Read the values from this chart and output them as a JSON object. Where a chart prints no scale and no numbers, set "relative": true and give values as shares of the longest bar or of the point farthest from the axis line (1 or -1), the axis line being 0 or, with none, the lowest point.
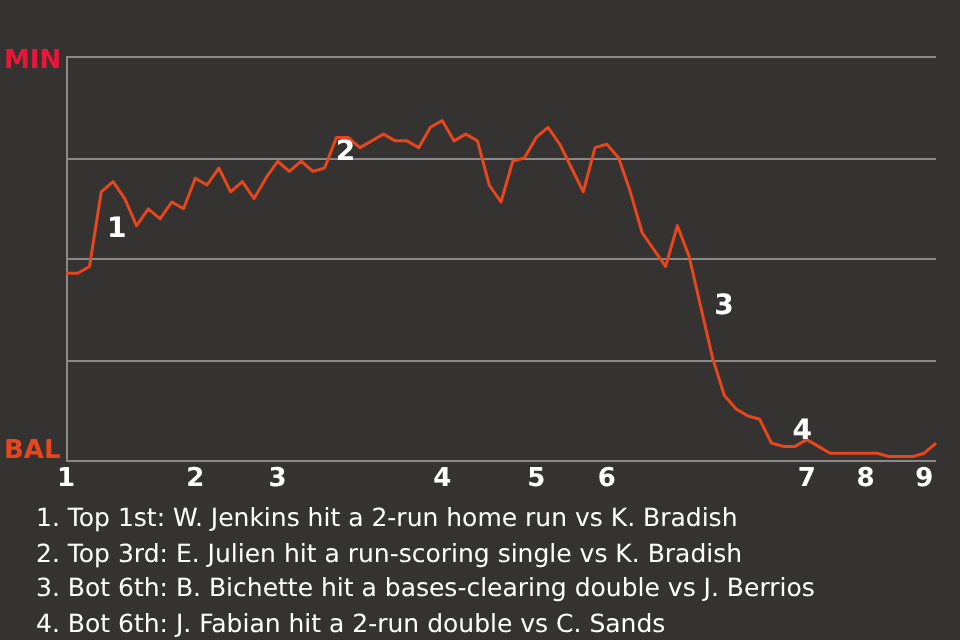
{
  "chart_data": {
    "type": "line",
    "categories": [
      "1",
      null,
      null,
      null,
      null,
      null,
      null,
      null,
      null,
      null,
      null,
      "2",
      null,
      null,
      null,
      null,
      null,
      null,
      "3",
      null,
      null,
      null,
      null,
      null,
      null,
      null,
      null,
      null,
      null,
      null,
      null,
      null,
      "4",
      null,
      null,
      null,
      null,
      null,
      null,
      null,
      "5",
      null,
      null,
      null,
      null,
      null,
      "6",
      null,
      null,
      null,
      null,
      null,
      null,
      null,
      null,
      null,
      null,
      null,
      null,
      null,
      null,
      null,
      null,
      "7",
      null,
      null,
      null,
      null,
      "8",
      null,
      null,
      null,
      null,
      "9",
      null
    ],
    "relative": true,
    "series": [
      {
        "color": "#e8461c",
        "values": [
          0.55,
          0.55,
          0.57,
          0.79,
          0.82,
          0.77,
          0.69,
          0.74,
          0.71,
          0.76,
          0.74,
          0.83,
          0.81,
          0.86,
          0.79,
          0.82,
          0.77,
          0.83,
          0.88,
          0.85,
          0.88,
          0.85,
          0.86,
          0.95,
          0.95,
          0.92,
          0.94,
          0.96,
          0.94,
          0.94,
          0.92,
          0.98,
          1,
          0.94,
          0.96,
          0.94,
          0.81,
          0.76,
          0.88,
          0.89,
          0.95,
          0.98,
          0.93,
          0.86,
          0.79,
          0.92,
          0.93,
          0.89,
          0.79,
          0.67,
          0.62,
          0.57,
          0.69,
          0.6,
          0.45,
          0.3,
          0.19,
          0.15,
          0.13,
          0.12,
          0.05,
          0.04,
          0.04,
          0.06,
          0.04,
          0.02,
          0.02,
          0.02,
          0.02,
          0.02,
          0.01,
          0.01,
          0.01,
          0.02,
          0.05
        ]
      }
    ],
    "grid": "y",
    "annotations": [
      "MIN",
      "BAL",
      "1",
      "2",
      "3",
      "4",
      "1. Top 1st: W. Jenkins hit a 2-run home run vs K. Bradish",
      "2. Top 3rd: E. Julien hit a run-scoring single vs K. Bradish",
      "3. Bot 6th: B. Bichette hit a bases-clearing double vs J. Berrios",
      "4. Bot 6th: J. Fabian hit a 2-run double vs C. Sands"
    ]
  }
}
